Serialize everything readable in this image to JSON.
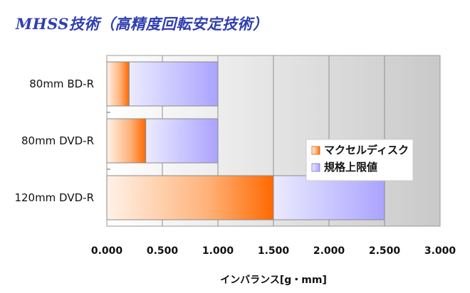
{
  "title": "MHSS技術（高精度回転安定技術）",
  "chart_data": {
    "type": "bar",
    "orientation": "horizontal",
    "stacked": "overlay",
    "categories": [
      "80mm BD-R",
      "80mm DVD-R",
      "120mm DVD-R"
    ],
    "series": [
      {
        "name": "マクセルディスク",
        "values": [
          0.2,
          0.35,
          1.5
        ],
        "color": "#ff7a1a"
      },
      {
        "name": "規格上限値",
        "values": [
          1.0,
          1.0,
          2.5
        ],
        "color": "#b8b2ff"
      }
    ],
    "xlabel": "インバランス[g・mm]",
    "xlim": [
      0,
      3.0
    ],
    "xticks": [
      "0.000",
      "0.500",
      "1.000",
      "1.500",
      "2.000",
      "2.500",
      "3.000"
    ],
    "grid": true,
    "legend": "right"
  }
}
